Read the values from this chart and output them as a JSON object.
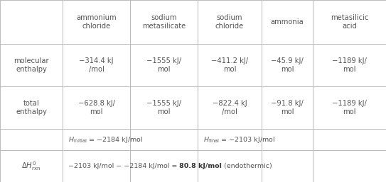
{
  "col_headers": [
    "ammonium\nchloride",
    "sodium\nmetasilicate",
    "sodium\nchloride",
    "ammonia",
    "metasilicic\nacid"
  ],
  "mol_enthalpy": [
    "−314.4 kJ\n/mol",
    "−1555 kJ/\nmol",
    "−411.2 kJ/\nmol",
    "−45.9 kJ/\nmol",
    "−1189 kJ/\nmol"
  ],
  "tot_enthalpy": [
    "−628.8 kJ/\nmol",
    "−1555 kJ/\nmol",
    "−822.4 kJ\n/mol",
    "−91.8 kJ/\nmol",
    "−1189 kJ/\nmol"
  ],
  "background_color": "#ffffff",
  "line_color": "#bbbbbb",
  "text_color": "#555555",
  "bold_color": "#333333",
  "fs_header": 7.2,
  "fs_data": 7.2,
  "fs_small": 6.8,
  "r_tops": [
    0,
    62,
    122,
    182,
    212,
    257
  ],
  "c_lefts": [
    0,
    88,
    183,
    278,
    368,
    440
  ],
  "c_rights": [
    88,
    183,
    278,
    368,
    440,
    543
  ]
}
